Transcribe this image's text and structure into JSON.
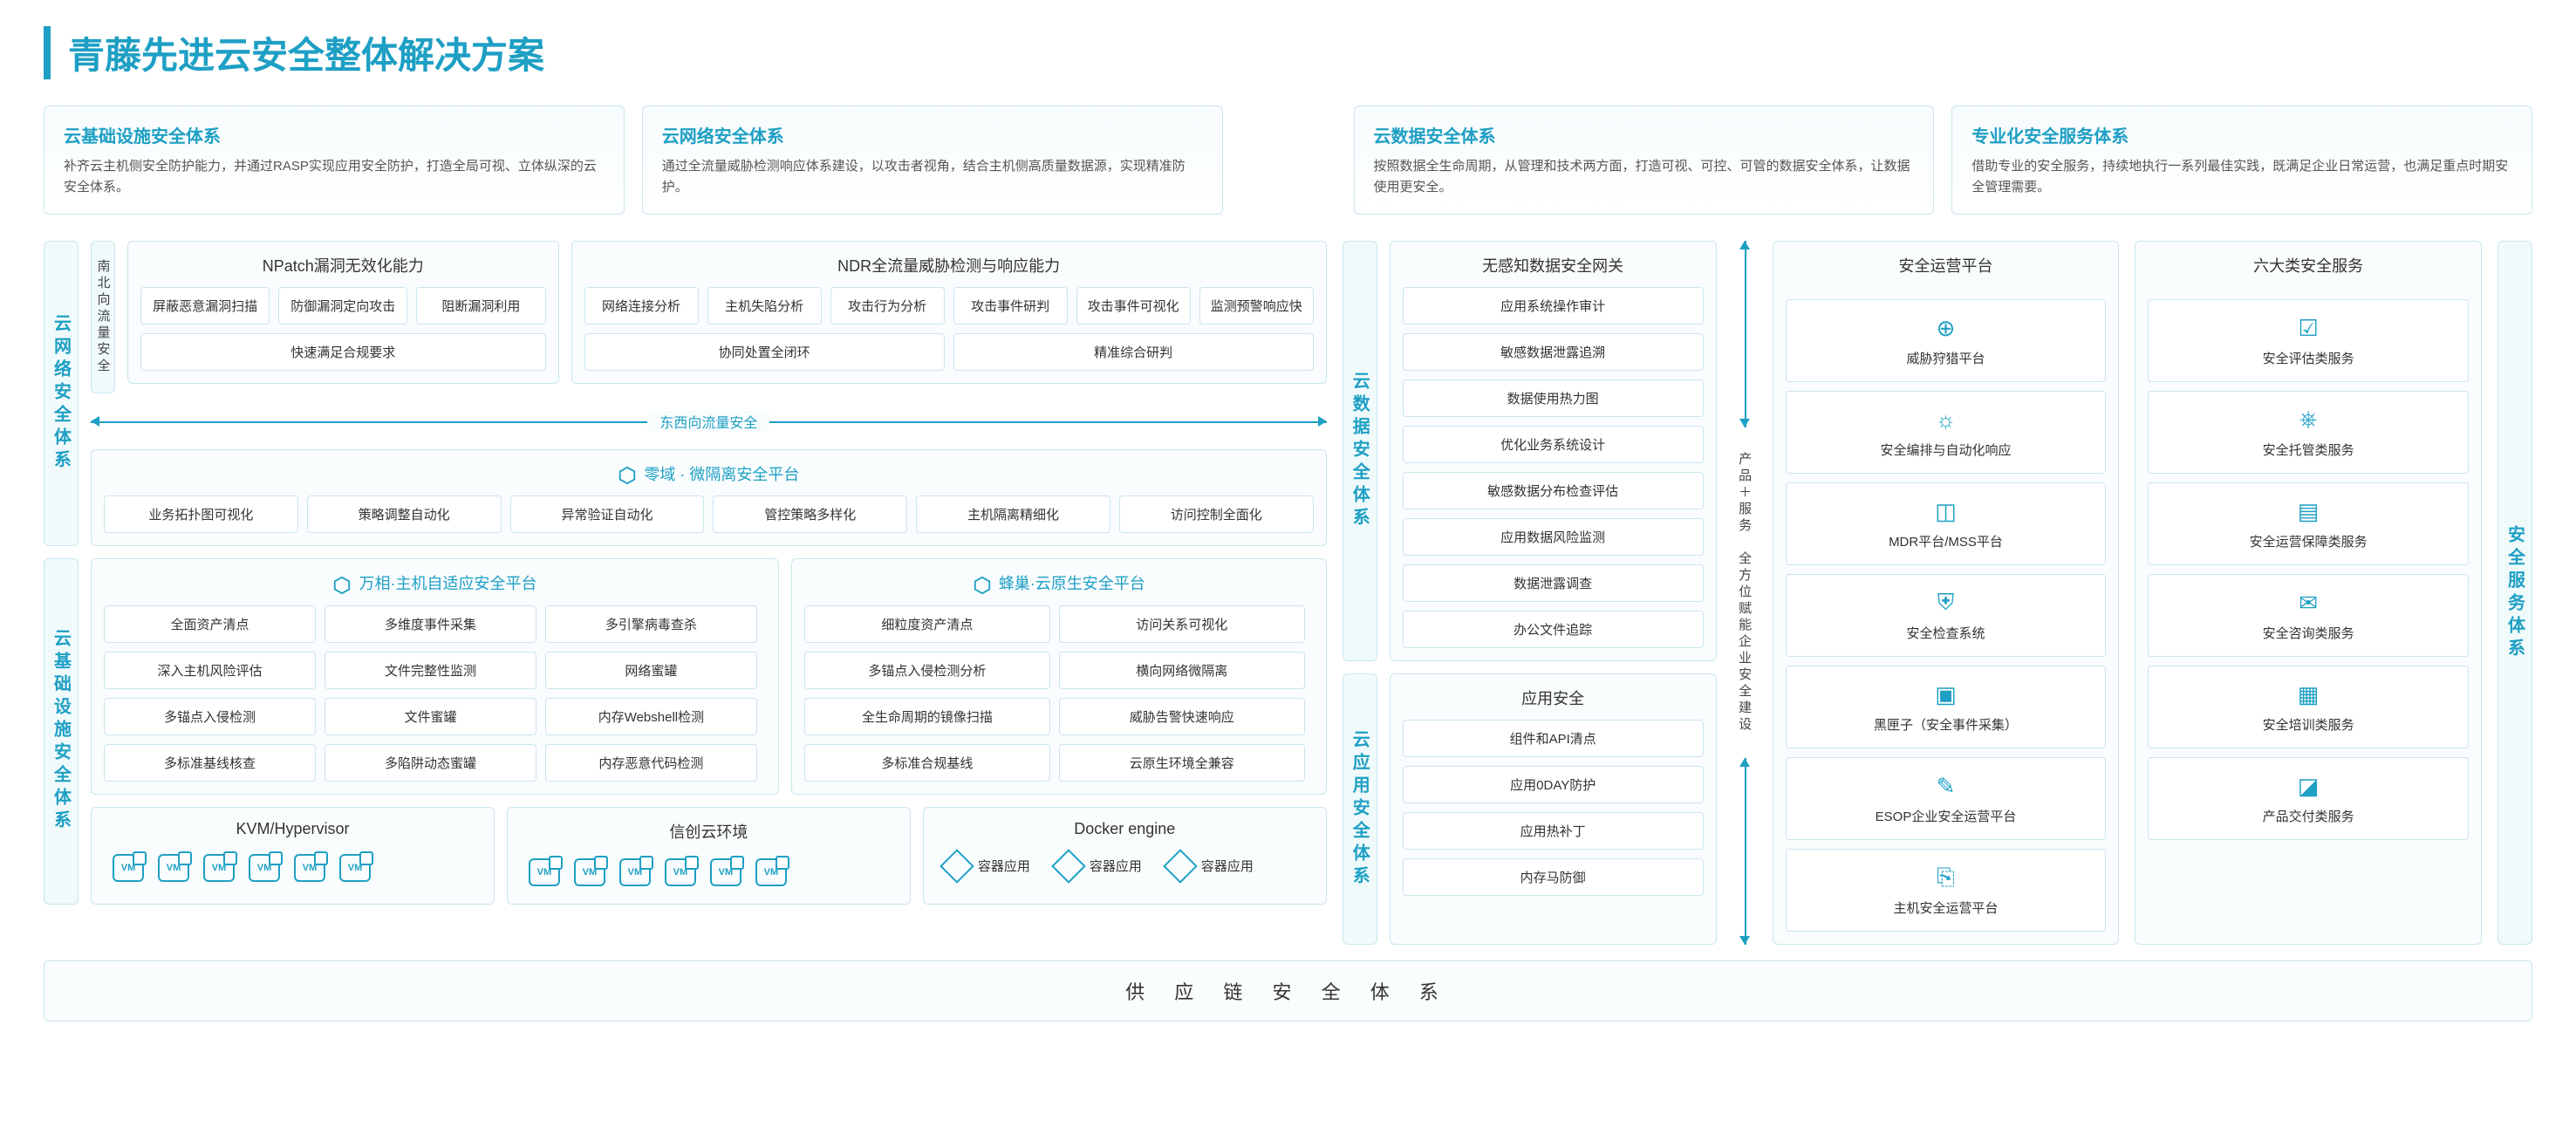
{
  "colors": {
    "accent": "#1e9fc4",
    "border": "#c8e6ed",
    "bg": "#fafdfe",
    "text": "#333"
  },
  "title": "青藤先进云安全整体解决方案",
  "top_cards": [
    {
      "title": "云基础设施安全体系",
      "desc": "补齐云主机侧安全防护能力，并通过RASP实现应用安全防护，打造全局可视、立体纵深的云安全体系。"
    },
    {
      "title": "云网络安全体系",
      "desc": "通过全流量威胁检测响应体系建设，以攻击者视角，结合主机侧高质量数据源，实现精准防护。"
    },
    {
      "title": "云数据安全体系",
      "desc": "按照数据全生命周期，从管理和技术两方面，打造可视、可控、可管的数据安全体系，让数据使用更安全。"
    },
    {
      "title": "专业化安全服务体系",
      "desc": "借助专业的安全服务，持续地执行一系列最佳实践，既满足企业日常运营，也满足重点时期安全管理需要。"
    }
  ],
  "net_sec": {
    "label": "云网络安全体系",
    "ns_label": "南北向流量安全",
    "npatch": {
      "title": "NPatch漏洞无效化能力",
      "items": [
        "屏蔽恶意漏洞扫描",
        "防御漏洞定向攻击",
        "阻断漏洞利用",
        "快速满足合规要求"
      ]
    },
    "ndr": {
      "title": "NDR全流量威胁检测与响应能力",
      "items": [
        "网络连接分析",
        "主机失陷分析",
        "攻击行为分析",
        "攻击事件研判",
        "攻击事件可视化",
        "监测预警响应快",
        "协同处置全闭环",
        "精准综合研判"
      ]
    },
    "ew_label": "东西向流量安全",
    "micro": {
      "title": "零域 · 微隔离安全平台",
      "items": [
        "业务拓扑图可视化",
        "策略调整自动化",
        "异常验证自动化",
        "管控策略多样化",
        "主机隔离精细化",
        "访问控制全面化"
      ]
    }
  },
  "infra_sec": {
    "label": "云基础设施安全体系",
    "wanxiang": {
      "title": "万相·主机自适应安全平台",
      "items": [
        "全面资产清点",
        "多维度事件采集",
        "多引擎病毒查杀",
        "深入主机风险评估",
        "文件完整性监测",
        "网络蜜罐",
        "多锚点入侵检测",
        "文件蜜罐",
        "内存Webshell检测",
        "多标准基线核查",
        "多陷阱动态蜜罐",
        "内存恶意代码检测"
      ]
    },
    "fengchao": {
      "title": "蜂巢·云原生安全平台",
      "items": [
        "细粒度资产清点",
        "访问关系可视化",
        "多锚点入侵检测分析",
        "横向网络微隔离",
        "全生命周期的镜像扫描",
        "威胁告警快速响应",
        "多标准合规基线",
        "云原生环境全兼容"
      ]
    },
    "kvm": {
      "title": "KVM/Hypervisor",
      "vm_count": 6
    },
    "xinchuang": {
      "title": "信创云环境",
      "vm_count": 6
    },
    "docker": {
      "title": "Docker engine",
      "items": [
        "容器应用",
        "容器应用",
        "容器应用"
      ]
    }
  },
  "data_sec": {
    "label": "云数据安全体系",
    "gateway": {
      "title": "无感知数据安全网关",
      "items": [
        "应用系统操作审计",
        "敏感数据泄露追溯",
        "数据使用热力图",
        "优化业务系统设计",
        "敏感数据分布检查评估",
        "应用数据风险监测",
        "数据泄露调查",
        "办公文件追踪"
      ]
    }
  },
  "app_sec": {
    "label": "云应用安全体系",
    "app": {
      "title": "应用安全",
      "items": [
        "组件和API清点",
        "应用0DAY防护",
        "应用热补丁",
        "内存马防御"
      ]
    }
  },
  "mid_label": "产品＋服务　全方位赋能企业安全建设",
  "ops": {
    "title": "安全运营平台",
    "items": [
      {
        "icon": "⊕",
        "label": "威胁狩猎平台"
      },
      {
        "icon": "☼",
        "label": "安全编排与自动化响应"
      },
      {
        "icon": "◫",
        "label": "MDR平台/MSS平台"
      },
      {
        "icon": "⛨",
        "label": "安全检查系统"
      },
      {
        "icon": "▣",
        "label": "黑匣子（安全事件采集）"
      },
      {
        "icon": "✎",
        "label": "ESOP企业安全运营平台"
      },
      {
        "icon": "⎘",
        "label": "主机安全运营平台"
      }
    ]
  },
  "services": {
    "title": "六大类安全服务",
    "items": [
      {
        "icon": "☑",
        "label": "安全评估类服务"
      },
      {
        "icon": "⎈",
        "label": "安全托管类服务"
      },
      {
        "icon": "▤",
        "label": "安全运营保障类服务"
      },
      {
        "icon": "✉",
        "label": "安全咨询类服务"
      },
      {
        "icon": "▦",
        "label": "安全培训类服务"
      },
      {
        "icon": "◪",
        "label": "产品交付类服务"
      }
    ]
  },
  "right_label": "安全服务体系",
  "footer": "供 应 链 安 全 体 系"
}
